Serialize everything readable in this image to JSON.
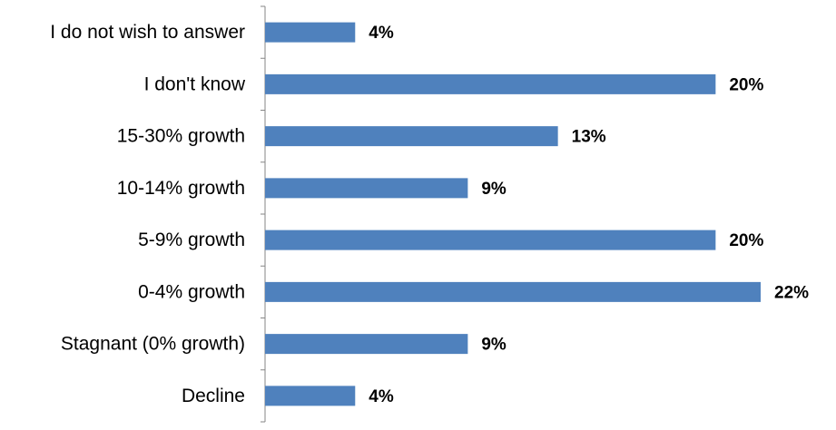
{
  "chart_data": {
    "type": "bar",
    "orientation": "horizontal",
    "categories": [
      "I do not wish to answer",
      "I don't know",
      "15-30% growth",
      "10-14% growth",
      "5-9% growth",
      "0-4% growth",
      "Stagnant (0% growth)",
      "Decline"
    ],
    "values": [
      4,
      20,
      13,
      9,
      20,
      22,
      9,
      4
    ],
    "value_labels": [
      "4%",
      "20%",
      "13%",
      "9%",
      "20%",
      "22%",
      "9%",
      "4%"
    ],
    "unit": "%",
    "xlim": [
      0,
      22
    ],
    "title": "",
    "xlabel": "",
    "ylabel": "",
    "grid": false,
    "legend": "none",
    "colors": {
      "bar": "#4F81BD",
      "axis": "#868686",
      "text": "#000000"
    }
  }
}
